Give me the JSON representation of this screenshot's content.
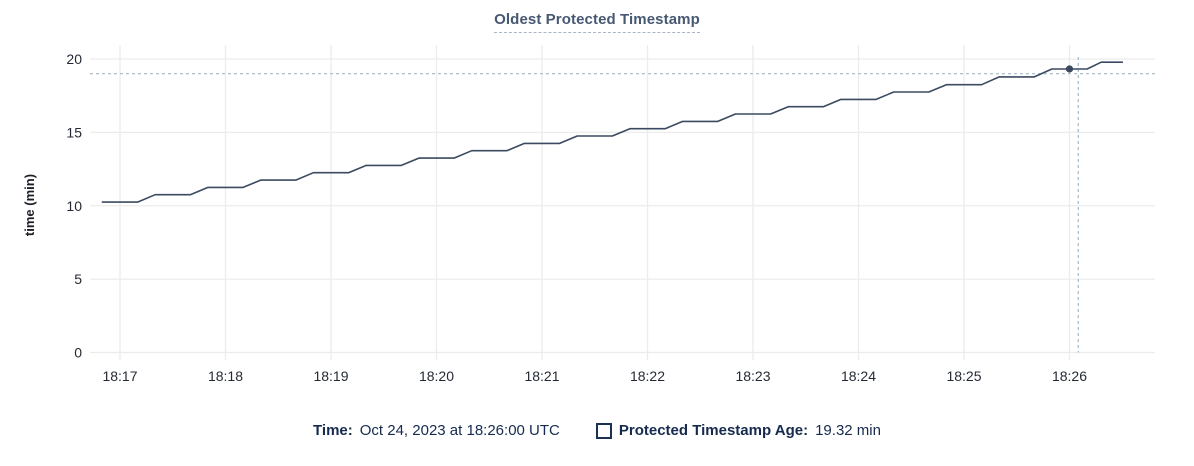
{
  "title": "Oldest Protected Timestamp",
  "y_axis": {
    "label": "time (min)",
    "ticks": [
      0,
      5,
      10,
      15,
      20
    ]
  },
  "x_axis": {
    "tick_labels": [
      "18:17",
      "18:18",
      "18:19",
      "18:20",
      "18:21",
      "18:22",
      "18:23",
      "18:24",
      "18:25",
      "18:26"
    ]
  },
  "footer": {
    "time_label": "Time:",
    "time_value": "Oct 24, 2023 at 18:26:00 UTC",
    "series_label": "Protected Timestamp Age:",
    "series_value": "19.32 min"
  },
  "chart_data": {
    "type": "line",
    "title": "Oldest Protected Timestamp",
    "xlabel": "",
    "ylabel": "time (min)",
    "ylim": [
      0,
      20
    ],
    "grid": true,
    "x_unit": "seconds since 18:17:00 UTC on Oct 24, 2023",
    "x_tick_seconds": [
      0,
      60,
      120,
      180,
      240,
      300,
      360,
      420,
      480,
      540
    ],
    "x_tick_labels": [
      "18:17",
      "18:18",
      "18:19",
      "18:20",
      "18:21",
      "18:22",
      "18:23",
      "18:24",
      "18:25",
      "18:26"
    ],
    "y_ticks": [
      0,
      5,
      10,
      15,
      20
    ],
    "series": [
      {
        "name": "Protected Timestamp Age",
        "unit": "min",
        "points": [
          [
            -10,
            10.25
          ],
          [
            10,
            10.25
          ],
          [
            20,
            10.75
          ],
          [
            40,
            10.75
          ],
          [
            50,
            11.25
          ],
          [
            70,
            11.25
          ],
          [
            80,
            11.75
          ],
          [
            100,
            11.75
          ],
          [
            110,
            12.25
          ],
          [
            130,
            12.25
          ],
          [
            140,
            12.75
          ],
          [
            160,
            12.75
          ],
          [
            170,
            13.25
          ],
          [
            190,
            13.25
          ],
          [
            200,
            13.75
          ],
          [
            220,
            13.75
          ],
          [
            230,
            14.25
          ],
          [
            250,
            14.25
          ],
          [
            260,
            14.75
          ],
          [
            280,
            14.75
          ],
          [
            290,
            15.25
          ],
          [
            310,
            15.25
          ],
          [
            320,
            15.75
          ],
          [
            340,
            15.75
          ],
          [
            350,
            16.25
          ],
          [
            370,
            16.25
          ],
          [
            380,
            16.75
          ],
          [
            400,
            16.75
          ],
          [
            410,
            17.25
          ],
          [
            430,
            17.25
          ],
          [
            440,
            17.75
          ],
          [
            460,
            17.75
          ],
          [
            470,
            18.25
          ],
          [
            490,
            18.25
          ],
          [
            500,
            18.78
          ],
          [
            520,
            18.78
          ],
          [
            530,
            19.32
          ],
          [
            550,
            19.32
          ],
          [
            558,
            19.78
          ],
          [
            570,
            19.78
          ]
        ]
      }
    ],
    "hover": {
      "point_seconds": 540,
      "point_time_label": "18:26:00",
      "point_value": 19.32,
      "crosshair_x_seconds": 545,
      "crosshair_y_value": 19.0
    },
    "colors": {
      "series_line": "#3b4a61",
      "hover_dot": "#39485f",
      "gridline": "#ececec",
      "crosshair": "#a5b9c5",
      "tick_text": "#242a35",
      "title_text": "#475872",
      "legend_text": "#152a4e"
    },
    "legend_position": "bottom-center"
  }
}
